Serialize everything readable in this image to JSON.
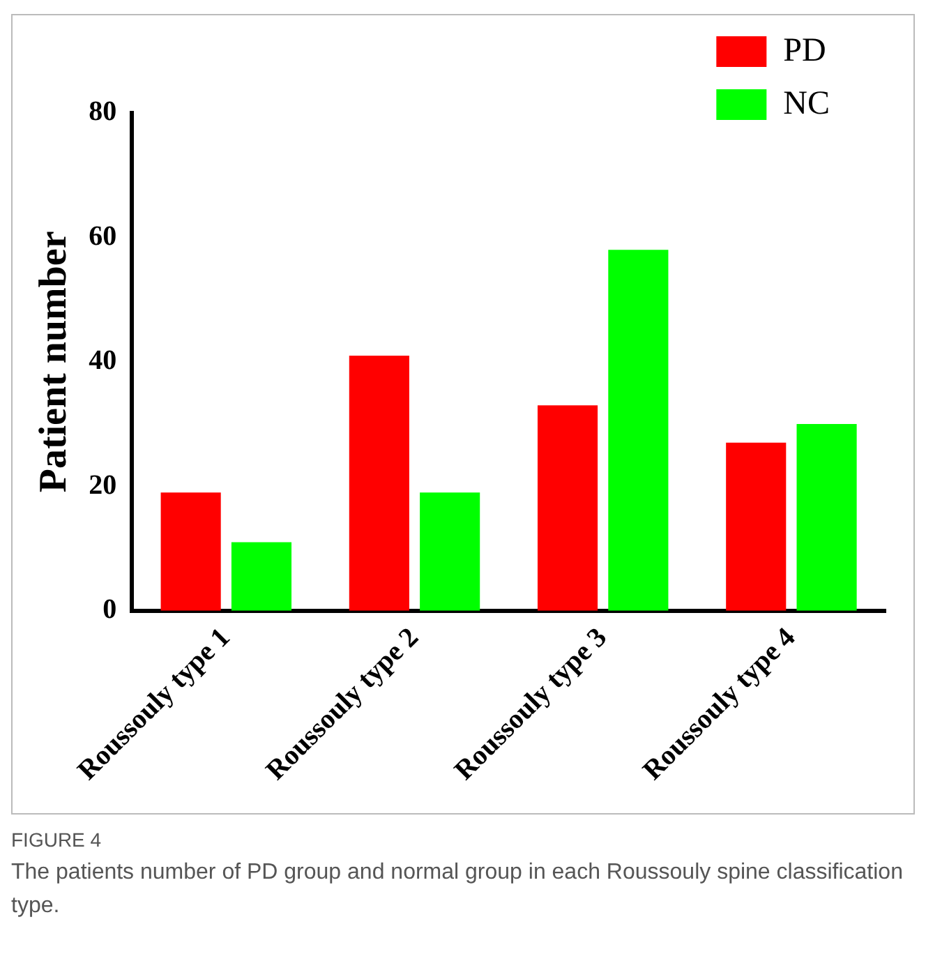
{
  "chart_data": {
    "type": "bar",
    "ylabel": "Patient number",
    "categories": [
      "Roussouly type 1",
      "Roussouly type 2",
      "Roussouly type 3",
      "Roussouly type 4"
    ],
    "series": [
      {
        "name": "PD",
        "color": "#ff0000",
        "values": [
          19,
          41,
          33,
          27
        ]
      },
      {
        "name": "NC",
        "color": "#00ff00",
        "values": [
          11,
          19,
          58,
          30
        ]
      }
    ],
    "ylim": [
      0,
      80
    ],
    "yticks": [
      0,
      20,
      40,
      60,
      80
    ],
    "grid": false,
    "legend": "top right",
    "annotations": [
      "FIGURE 4",
      "The patients number of PD group and normal group in each Roussouly spine classification type."
    ]
  }
}
